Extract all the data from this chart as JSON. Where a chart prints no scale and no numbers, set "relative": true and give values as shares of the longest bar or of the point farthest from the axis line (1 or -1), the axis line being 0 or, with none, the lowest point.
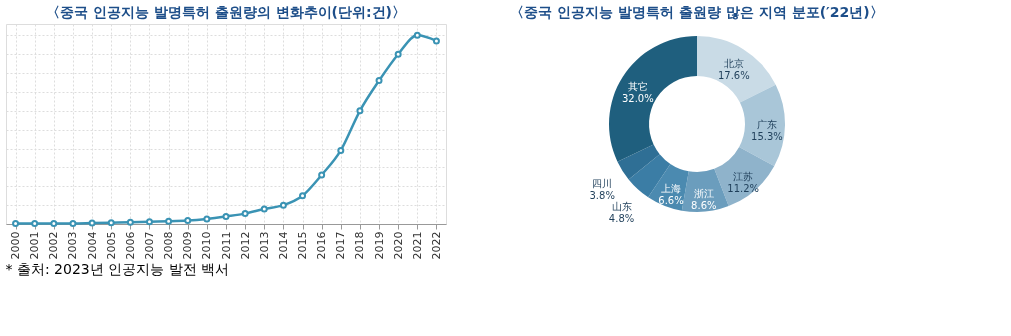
{
  "chart_data": [
    {
      "type": "line",
      "title": "〈중국 인공지능 발명특허 출원량의 변화추이(단위:건)〉",
      "relative": true,
      "grid": true,
      "marker": "circle",
      "line_style": "solid",
      "categories": [
        "2000",
        "2001",
        "2002",
        "2003",
        "2004",
        "2005",
        "2006",
        "2007",
        "2008",
        "2009",
        "2010",
        "2011",
        "2012",
        "2013",
        "2014",
        "2015",
        "2016",
        "2017",
        "2018",
        "2019",
        "2020",
        "2021",
        "2022"
      ],
      "series": [
        {
          "color": "#3a93b4",
          "values": [
            0.002,
            0.002,
            0.003,
            0.003,
            0.005,
            0.007,
            0.009,
            0.012,
            0.014,
            0.018,
            0.027,
            0.04,
            0.055,
            0.08,
            0.1,
            0.15,
            0.26,
            0.39,
            0.6,
            0.76,
            0.9,
            1.0,
            0.97
          ]
        }
      ],
      "annotations": [
        "* 출처: 2023년 인공지능 발전 백서"
      ]
    },
    {
      "type": "donut",
      "title": "〈중국 인공지능 발명특허 출원량 많은 지역 분포(′22년)〉",
      "categories": [
        "北京",
        "广东",
        "江苏",
        "浙江",
        "上海",
        "山东",
        "四川",
        "其它"
      ],
      "values": [
        17.6,
        15.3,
        11.2,
        8.6,
        6.6,
        4.8,
        3.8,
        32.0
      ],
      "value_labels": [
        "17.6%",
        "15.3%",
        "11.2%",
        "8.6%",
        "6.6%",
        "4.8%",
        "3.8%",
        "32.0%"
      ],
      "colors": [
        "#c9dbe6",
        "#a9c6d8",
        "#8fb3cb",
        "#6b9dbd",
        "#4b8ab0",
        "#3b7da5",
        "#2f6f95",
        "#1f5f7e"
      ]
    }
  ]
}
